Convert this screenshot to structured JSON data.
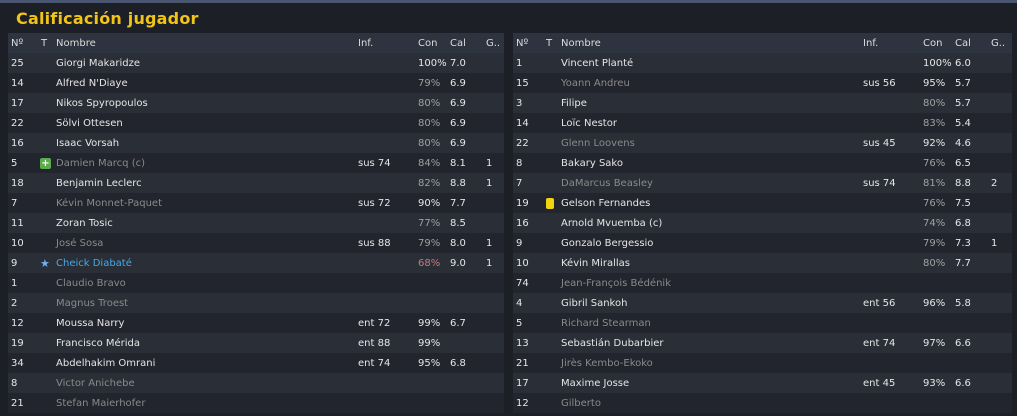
{
  "title": "Calificación jugador",
  "columns": {
    "num": "Nº",
    "t": "T",
    "name": "Nombre",
    "inf": "Inf.",
    "con": "Con",
    "cal": "Cal",
    "g": "G.."
  },
  "left_rows": [
    {
      "num": "25",
      "name": "Giorgi Makaridze",
      "inf": "",
      "con": "100%",
      "cal": "7.0",
      "g": "",
      "style": "",
      "icon": ""
    },
    {
      "num": "14",
      "name": "Alfred N'Diaye",
      "inf": "",
      "con": "79%",
      "cal": "6.9",
      "g": "",
      "style": "",
      "icon": ""
    },
    {
      "num": "17",
      "name": "Nikos Spyropoulos",
      "inf": "",
      "con": "80%",
      "cal": "6.9",
      "g": "",
      "style": "",
      "icon": ""
    },
    {
      "num": "22",
      "name": "Sölvi Ottesen",
      "inf": "",
      "con": "80%",
      "cal": "6.9",
      "g": "",
      "style": "",
      "icon": ""
    },
    {
      "num": "16",
      "name": "Isaac Vorsah",
      "inf": "",
      "con": "80%",
      "cal": "6.9",
      "g": "",
      "style": "",
      "icon": ""
    },
    {
      "num": "5",
      "name": "Damien Marcq (c)",
      "inf": "sus 74",
      "con": "84%",
      "cal": "8.1",
      "g": "1",
      "style": "dim",
      "icon": "sub"
    },
    {
      "num": "18",
      "name": "Benjamin Leclerc",
      "inf": "",
      "con": "82%",
      "cal": "8.8",
      "g": "1",
      "style": "",
      "icon": ""
    },
    {
      "num": "7",
      "name": "Kévin Monnet-Paquet",
      "inf": "sus 72",
      "con": "90%",
      "cal": "7.7",
      "g": "",
      "style": "dim",
      "icon": ""
    },
    {
      "num": "11",
      "name": "Zoran Tosic",
      "inf": "",
      "con": "77%",
      "cal": "8.5",
      "g": "",
      "style": "",
      "icon": ""
    },
    {
      "num": "10",
      "name": "José Sosa",
      "inf": "sus 88",
      "con": "79%",
      "cal": "8.0",
      "g": "1",
      "style": "dim",
      "icon": ""
    },
    {
      "num": "9",
      "name": "Cheick Diabaté",
      "inf": "",
      "con": "68%",
      "cal": "9.0",
      "g": "1",
      "style": "star",
      "icon": "star"
    },
    {
      "num": "1",
      "name": "Claudio Bravo",
      "inf": "",
      "con": "",
      "cal": "",
      "g": "",
      "style": "dim",
      "icon": ""
    },
    {
      "num": "2",
      "name": "Magnus Troest",
      "inf": "",
      "con": "",
      "cal": "",
      "g": "",
      "style": "dim",
      "icon": ""
    },
    {
      "num": "12",
      "name": "Moussa Narry",
      "inf": "ent 72",
      "con": "99%",
      "cal": "6.7",
      "g": "",
      "style": "",
      "icon": ""
    },
    {
      "num": "19",
      "name": "Francisco Mérida",
      "inf": "ent 88",
      "con": "99%",
      "cal": "",
      "g": "",
      "style": "",
      "icon": ""
    },
    {
      "num": "34",
      "name": "Abdelhakim Omrani",
      "inf": "ent 74",
      "con": "95%",
      "cal": "6.8",
      "g": "",
      "style": "",
      "icon": ""
    },
    {
      "num": "8",
      "name": "Victor Anichebe",
      "inf": "",
      "con": "",
      "cal": "",
      "g": "",
      "style": "dim",
      "icon": ""
    },
    {
      "num": "21",
      "name": "Stefan Maierhofer",
      "inf": "",
      "con": "",
      "cal": "",
      "g": "",
      "style": "dim",
      "icon": ""
    }
  ],
  "right_rows": [
    {
      "num": "1",
      "name": "Vincent Planté",
      "inf": "",
      "con": "100%",
      "cal": "6.0",
      "g": "",
      "style": "",
      "icon": ""
    },
    {
      "num": "15",
      "name": "Yoann Andreu",
      "inf": "sus 56",
      "con": "95%",
      "cal": "5.7",
      "g": "",
      "style": "dim",
      "icon": ""
    },
    {
      "num": "3",
      "name": "Filipe",
      "inf": "",
      "con": "80%",
      "cal": "5.7",
      "g": "",
      "style": "",
      "icon": ""
    },
    {
      "num": "14",
      "name": "Loïc Nestor",
      "inf": "",
      "con": "83%",
      "cal": "5.4",
      "g": "",
      "style": "",
      "icon": ""
    },
    {
      "num": "22",
      "name": "Glenn Loovens",
      "inf": "sus 45",
      "con": "92%",
      "cal": "4.6",
      "g": "",
      "style": "dim",
      "icon": ""
    },
    {
      "num": "8",
      "name": "Bakary Sako",
      "inf": "",
      "con": "76%",
      "cal": "6.5",
      "g": "",
      "style": "",
      "icon": ""
    },
    {
      "num": "7",
      "name": "DaMarcus Beasley",
      "inf": "sus 74",
      "con": "81%",
      "cal": "8.8",
      "g": "2",
      "style": "dim",
      "icon": ""
    },
    {
      "num": "19",
      "name": "Gelson Fernandes",
      "inf": "",
      "con": "76%",
      "cal": "7.5",
      "g": "",
      "style": "",
      "icon": "yellow"
    },
    {
      "num": "16",
      "name": "Arnold Mvuemba (c)",
      "inf": "",
      "con": "74%",
      "cal": "6.8",
      "g": "",
      "style": "",
      "icon": ""
    },
    {
      "num": "9",
      "name": "Gonzalo Bergessio",
      "inf": "",
      "con": "79%",
      "cal": "7.3",
      "g": "1",
      "style": "",
      "icon": ""
    },
    {
      "num": "10",
      "name": "Kévin Mirallas",
      "inf": "",
      "con": "80%",
      "cal": "7.7",
      "g": "",
      "style": "",
      "icon": ""
    },
    {
      "num": "74",
      "name": "Jean-François Bédénik",
      "inf": "",
      "con": "",
      "cal": "",
      "g": "",
      "style": "dim",
      "icon": ""
    },
    {
      "num": "4",
      "name": "Gibril Sankoh",
      "inf": "ent 56",
      "con": "96%",
      "cal": "5.8",
      "g": "",
      "style": "",
      "icon": ""
    },
    {
      "num": "5",
      "name": "Richard Stearman",
      "inf": "",
      "con": "",
      "cal": "",
      "g": "",
      "style": "dim",
      "icon": ""
    },
    {
      "num": "13",
      "name": "Sebastián Dubarbier",
      "inf": "ent 74",
      "con": "97%",
      "cal": "6.6",
      "g": "",
      "style": "",
      "icon": ""
    },
    {
      "num": "21",
      "name": "Jirès Kembo-Ekoko",
      "inf": "",
      "con": "",
      "cal": "",
      "g": "",
      "style": "dim",
      "icon": ""
    },
    {
      "num": "17",
      "name": "Maxime Josse",
      "inf": "ent 45",
      "con": "93%",
      "cal": "6.6",
      "g": "",
      "style": "",
      "icon": ""
    },
    {
      "num": "12",
      "name": "Gilberto",
      "inf": "",
      "con": "",
      "cal": "",
      "g": "",
      "style": "dim",
      "icon": ""
    }
  ]
}
